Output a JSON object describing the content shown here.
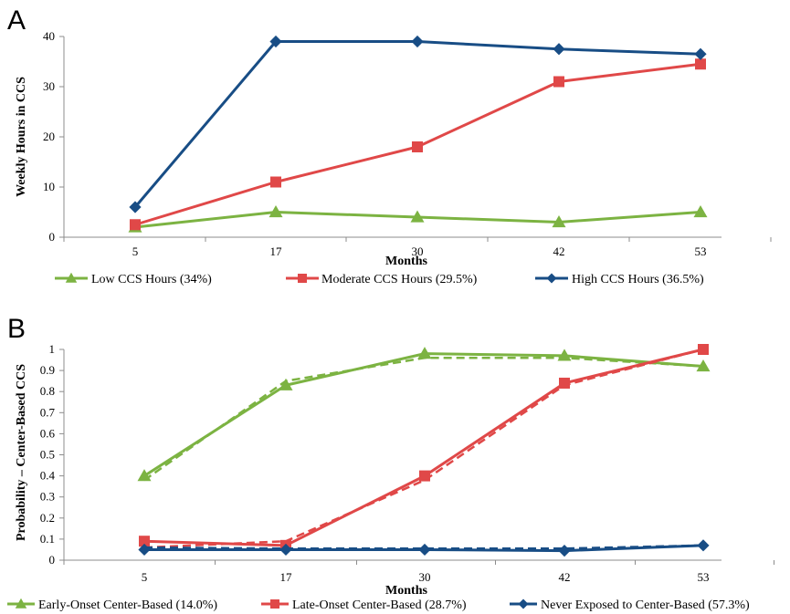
{
  "chart_data": [
    {
      "panel": "A",
      "type": "line",
      "xlabel": "Months",
      "ylabel": "Weekly Hours in CCS",
      "categories": [
        "5",
        "17",
        "30",
        "42",
        "53"
      ],
      "ylim": [
        0,
        40
      ],
      "yticks": [
        "0",
        "10",
        "20",
        "30",
        "40"
      ],
      "grid": false,
      "legend_position": "bottom",
      "series": [
        {
          "name": "Low CCS Hours (34%)",
          "values": [
            2,
            5,
            4,
            3,
            5
          ],
          "color": "#7cb342",
          "marker": "triangle"
        },
        {
          "name": "Moderate CCS Hours (29.5%)",
          "values": [
            2.5,
            11,
            18,
            31,
            34.5
          ],
          "color": "#e04848",
          "marker": "square"
        },
        {
          "name": "High CCS Hours (36.5%)",
          "values": [
            6,
            39,
            39,
            37.5,
            36.5
          ],
          "color": "#184d85",
          "marker": "diamond"
        }
      ]
    },
    {
      "panel": "B",
      "type": "line",
      "xlabel": "Months",
      "ylabel": "Probability – Center-Based CCS",
      "categories": [
        "5",
        "17",
        "30",
        "42",
        "53"
      ],
      "ylim": [
        0,
        1
      ],
      "yticks": [
        "0",
        "0.1",
        "0.2",
        "0.3",
        "0.4",
        "0.5",
        "0.6",
        "0.7",
        "0.8",
        "0.9",
        "1"
      ],
      "grid": false,
      "legend_position": "bottom",
      "series": [
        {
          "name": "Early-Onset Center-Based (14.0%)",
          "values": [
            0.4,
            0.83,
            0.98,
            0.97,
            0.92
          ],
          "dashed_values": [
            0.38,
            0.85,
            0.96,
            0.96,
            0.92
          ],
          "color": "#7cb342",
          "marker": "triangle"
        },
        {
          "name": "Late-Onset Center-Based (28.7%)",
          "values": [
            0.09,
            0.07,
            0.4,
            0.84,
            1.0
          ],
          "dashed_values": [
            0.06,
            0.09,
            0.38,
            0.83,
            1.0
          ],
          "color": "#e04848",
          "marker": "square"
        },
        {
          "name": "Never Exposed to Center-Based (57.3%)",
          "values": [
            0.05,
            0.05,
            0.05,
            0.045,
            0.07
          ],
          "dashed_values": [
            0.06,
            0.055,
            0.055,
            0.055,
            0.07
          ],
          "color": "#184d85",
          "marker": "diamond"
        }
      ]
    }
  ]
}
